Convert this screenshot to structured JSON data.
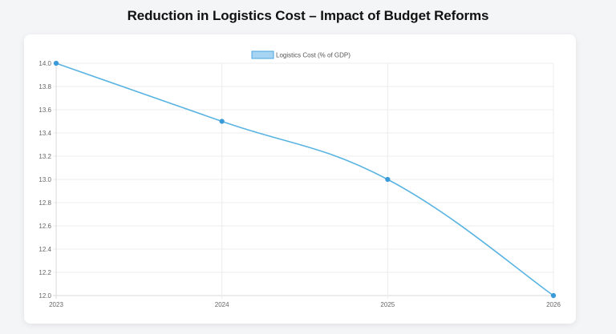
{
  "page": {
    "title": "Reduction in Logistics Cost – Impact of Budget Reforms"
  },
  "colors": {
    "line": "#5ab4e2",
    "point": "#3a9bd8",
    "legend_fill": "#a6d4f2",
    "legend_border": "#4aa6df",
    "grid": "#ececec",
    "axis": "#d9d9d9"
  },
  "chart_data": {
    "type": "line",
    "title": "Reduction in Logistics Cost – Impact of Budget Reforms",
    "categories": [
      "2023",
      "2024",
      "2025",
      "2026"
    ],
    "series": [
      {
        "name": "Logistics Cost (% of GDP)",
        "values": [
          14.0,
          13.5,
          13.0,
          12.0
        ]
      }
    ],
    "xlabel": "",
    "ylabel": "",
    "ylim": [
      12.0,
      14.0
    ],
    "yticks": [
      "12.0",
      "12.2",
      "12.4",
      "12.6",
      "12.8",
      "13.0",
      "13.2",
      "13.4",
      "13.6",
      "13.8",
      "14.0"
    ],
    "grid": true,
    "legend": "top-center",
    "smooth": true
  }
}
